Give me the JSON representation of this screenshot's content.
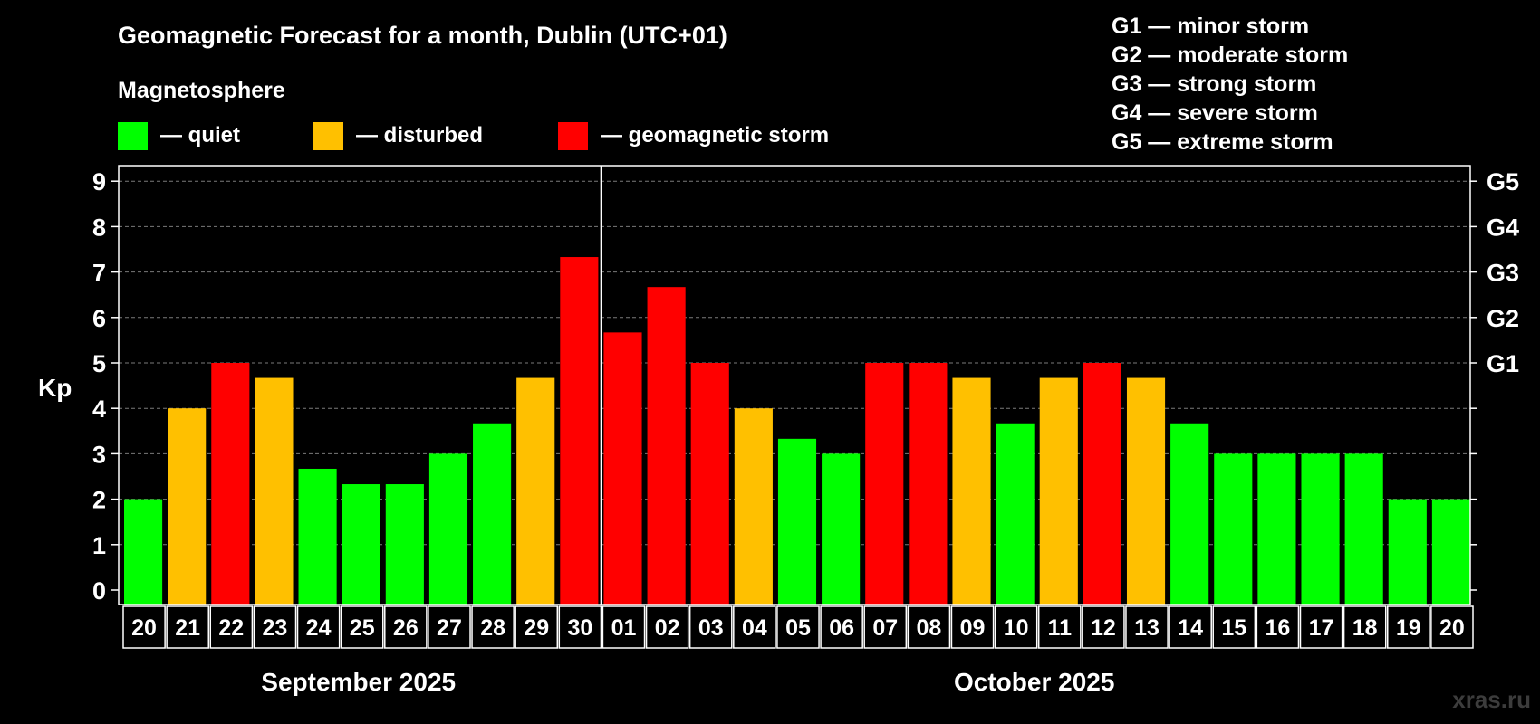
{
  "chart_data": {
    "type": "bar",
    "title": "Geomagnetic Forecast for a month, Dublin (UTC+01)",
    "subtitle": "Magnetosphere",
    "ylabel": "Kp",
    "ylim": [
      0,
      9
    ],
    "y_ticks": [
      "0",
      "1",
      "2",
      "3",
      "4",
      "5",
      "6",
      "7",
      "8",
      "9"
    ],
    "right_ticks": [
      {
        "kp": 5,
        "label": "G1"
      },
      {
        "kp": 6,
        "label": "G2"
      },
      {
        "kp": 7,
        "label": "G3"
      },
      {
        "kp": 8,
        "label": "G4"
      },
      {
        "kp": 9,
        "label": "G5"
      }
    ],
    "legend": [
      {
        "label": "— quiet",
        "color": "#00FF00"
      },
      {
        "label": "— disturbed",
        "color": "#FFC000"
      },
      {
        "label": "— geomagnetic storm",
        "color": "#FF0000"
      }
    ],
    "storm_scale": [
      "G1 — minor storm",
      "G2 — moderate storm",
      "G3 — strong storm",
      "G4 — severe storm",
      "G5 — extreme storm"
    ],
    "categories": [
      "20",
      "21",
      "22",
      "23",
      "24",
      "25",
      "26",
      "27",
      "28",
      "29",
      "30",
      "01",
      "02",
      "03",
      "04",
      "05",
      "06",
      "07",
      "08",
      "09",
      "10",
      "11",
      "12",
      "13",
      "14",
      "15",
      "16",
      "17",
      "18",
      "19",
      "20"
    ],
    "values": [
      2,
      4,
      5,
      4.67,
      2.67,
      2.33,
      2.33,
      3,
      3.67,
      4.67,
      7.33,
      5.67,
      6.67,
      5,
      4,
      3.33,
      3,
      5,
      5,
      4.67,
      3.67,
      4.67,
      5,
      4.67,
      3.67,
      3,
      3,
      3,
      3,
      2,
      2
    ],
    "levels": [
      "quiet",
      "disturbed",
      "storm",
      "disturbed",
      "quiet",
      "quiet",
      "quiet",
      "quiet",
      "quiet",
      "disturbed",
      "storm",
      "storm",
      "storm",
      "storm",
      "disturbed",
      "quiet",
      "quiet",
      "storm",
      "storm",
      "disturbed",
      "quiet",
      "disturbed",
      "storm",
      "disturbed",
      "quiet",
      "quiet",
      "quiet",
      "quiet",
      "quiet",
      "quiet",
      "quiet"
    ],
    "level_colors": {
      "quiet": "#00FF00",
      "disturbed": "#FFC000",
      "storm": "#FF0000"
    },
    "months": [
      {
        "label": "September 2025",
        "count": 11
      },
      {
        "label": "October 2025",
        "count": 20
      }
    ]
  },
  "watermark": "xras.ru"
}
